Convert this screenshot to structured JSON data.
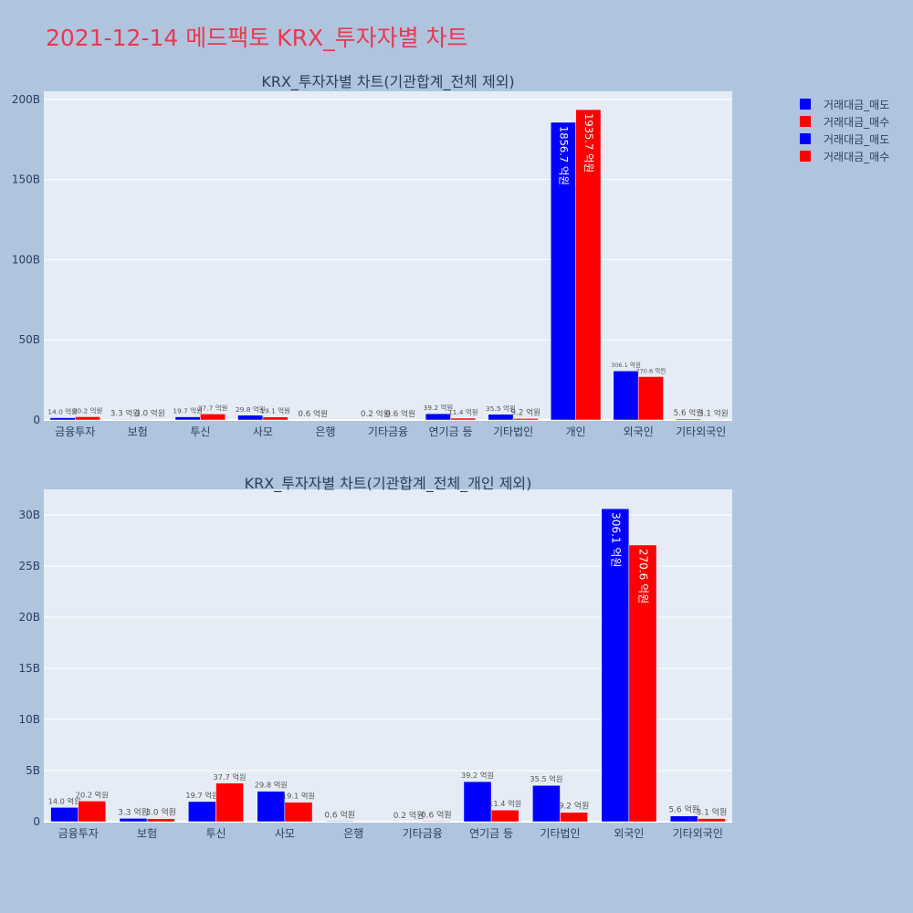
{
  "title": "2021-12-14 메드팩토 KRX_투자자별 차트",
  "colors": {
    "sell": "#0000ff",
    "buy": "#ff0000",
    "background": "#b0c4de",
    "plot_bg": "#e5ecf6",
    "title": "#e8394f"
  },
  "legend": [
    "거래대금_매도",
    "거래대금_매수",
    "거래대금_매도",
    "거래대금_매수"
  ],
  "chart_data": [
    {
      "type": "bar",
      "title": "KRX_투자자별 차트(기관합계_전체 제외)",
      "categories": [
        "금융투자",
        "보험",
        "투신",
        "사모",
        "은행",
        "기타금융",
        "연기금 등",
        "기타법인",
        "개인",
        "외국인",
        "기타외국인"
      ],
      "ylim": [
        0,
        205
      ],
      "yticks": [
        0,
        50,
        100,
        150,
        200
      ],
      "ytick_labels": [
        "0",
        "50B",
        "100B",
        "150B",
        "200B"
      ],
      "series": [
        {
          "name": "거래대금_매도",
          "values": [
            1.4,
            0.33,
            1.97,
            2.98,
            0.06,
            0.02,
            3.92,
            3.55,
            185.67,
            30.61,
            0.56
          ],
          "labels": [
            "14.0 억원",
            "3.3 억원",
            "19.7 억원",
            "29.8 억원",
            "0.6 억원",
            "0.2 억원",
            "39.2 억원",
            "35.5 억원",
            "1856.7 억원",
            "306.1 억원",
            "5.6 억원"
          ]
        },
        {
          "name": "거래대금_매수",
          "values": [
            2.02,
            0.3,
            3.77,
            1.91,
            0.0,
            0.06,
            1.14,
            0.92,
            193.57,
            27.06,
            0.31
          ],
          "labels": [
            "20.2 억원",
            "3.0 억원",
            "37.7 억원",
            "19.1 억원",
            "",
            "0.6 억원",
            "11.4 억원",
            "9.2 억원",
            "1935.7 억원",
            "270.6 억원",
            "3.1 억원"
          ]
        }
      ]
    },
    {
      "type": "bar",
      "title": "KRX_투자자별 차트(기관합계_전체_개인 제외)",
      "categories": [
        "금융투자",
        "보험",
        "투신",
        "사모",
        "은행",
        "기타금융",
        "연기금 등",
        "기타법인",
        "외국인",
        "기타외국인"
      ],
      "ylim": [
        0,
        32.5
      ],
      "yticks": [
        0,
        5,
        10,
        15,
        20,
        25,
        30
      ],
      "ytick_labels": [
        "0",
        "5B",
        "10B",
        "15B",
        "20B",
        "25B",
        "30B"
      ],
      "series": [
        {
          "name": "거래대금_매도",
          "values": [
            1.4,
            0.33,
            1.97,
            2.98,
            0.06,
            0.02,
            3.92,
            3.55,
            30.61,
            0.56
          ],
          "labels": [
            "14.0 억원",
            "3.3 억원",
            "19.7 억원",
            "29.8 억원",
            "0.6 억원",
            "0.2 억원",
            "39.2 억원",
            "35.5 억원",
            "306.1 억원",
            "5.6 억원"
          ]
        },
        {
          "name": "거래대금_매수",
          "values": [
            2.02,
            0.3,
            3.77,
            1.91,
            0.0,
            0.06,
            1.14,
            0.92,
            27.06,
            0.31
          ],
          "labels": [
            "20.2 억원",
            "3.0 억원",
            "37.7 억원",
            "19.1 억원",
            "",
            "0.6 억원",
            "11.4 억원",
            "9.2 억원",
            "270.6 억원",
            "3.1 억원"
          ]
        }
      ]
    }
  ]
}
